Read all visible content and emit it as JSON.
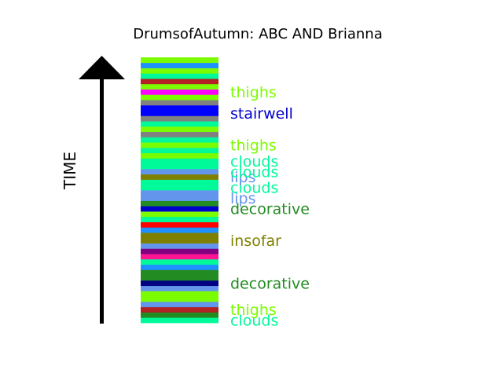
{
  "chart_data": {
    "type": "bar",
    "title": "DrumsofAutumn: ABC AND Brianna",
    "ylabel": "TIME",
    "xlabel": "",
    "segments_bottom_to_top": [
      "#00fa9a",
      "#228b22",
      "#b22222",
      "#6495ed",
      "#7cfc00",
      "#7cfc00",
      "#6495ed",
      "#000080",
      "#228b22",
      "#228b22",
      "#1e90ff",
      "#00fa9a",
      "#ff1493",
      "#800080",
      "#6495ed",
      "#808000",
      "#808000",
      "#1e90ff",
      "#ff0000",
      "#00fa9a",
      "#7cfc00",
      "#0000cd",
      "#228b22",
      "#6495ed",
      "#6495ed",
      "#00fa9a",
      "#00fa9a",
      "#808000",
      "#6495ed",
      "#00fa9a",
      "#00fa9a",
      "#7cfc00",
      "#00fa9a",
      "#7cfc00",
      "#00fa9a",
      "#808080",
      "#7cfc00",
      "#00fa9a",
      "#808080",
      "#0000ff",
      "#0000ff",
      "#808080",
      "#7cfc00",
      "#ff00ff",
      "#7cfc00",
      "#b22222",
      "#00fa9a",
      "#7cfc00",
      "#1e90ff",
      "#7cfc00"
    ],
    "labels": [
      {
        "text": "clouds",
        "color": "#00fa9a",
        "segment": 0
      },
      {
        "text": "thighs",
        "color": "#7cfc00",
        "segment": 2
      },
      {
        "text": "decorative",
        "color": "#228b22",
        "segment": 7
      },
      {
        "text": "insofar",
        "color": "#808000",
        "segment": 15
      },
      {
        "text": "decorative",
        "color": "#228b22",
        "segment": 21
      },
      {
        "text": "lips",
        "color": "#6495ed",
        "segment": 23
      },
      {
        "text": "clouds",
        "color": "#00fa9a",
        "segment": 25
      },
      {
        "text": "lips",
        "color": "#6495ed",
        "segment": 27
      },
      {
        "text": "clouds",
        "color": "#00fa9a",
        "segment": 28
      },
      {
        "text": "clouds",
        "color": "#00fa9a",
        "segment": 30
      },
      {
        "text": "thighs",
        "color": "#7cfc00",
        "segment": 33
      },
      {
        "text": "stairwell",
        "color": "#0000cd",
        "segment": 39
      },
      {
        "text": "thighs",
        "color": "#7cfc00",
        "segment": 43
      }
    ]
  }
}
